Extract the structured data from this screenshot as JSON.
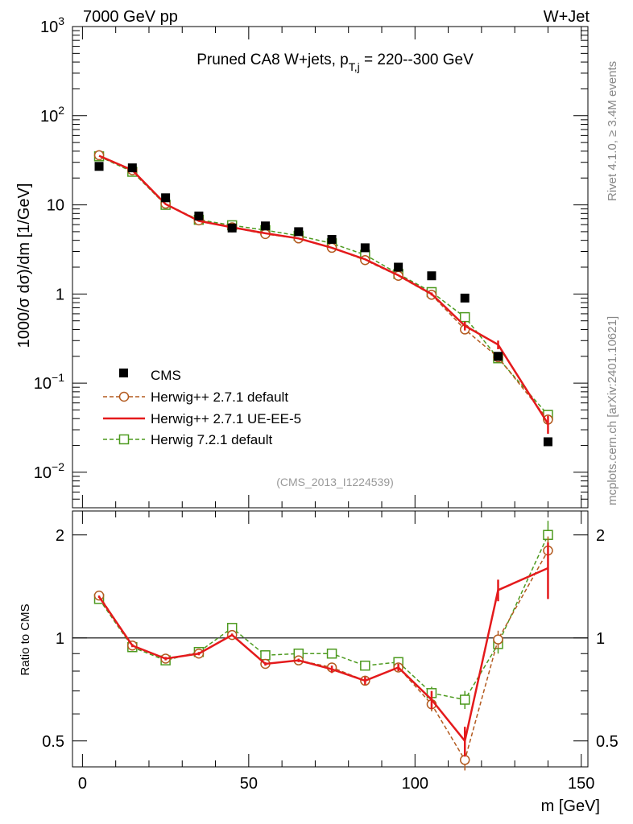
{
  "header": {
    "left": "7000 GeV pp",
    "right": "W+Jet"
  },
  "side_labels": {
    "rivet": "Rivet 4.1.0, ≥ 3.4M events",
    "mcplots": "mcplots.cern.ch [arXiv:2401.10621]"
  },
  "analysis_id": "(CMS_2013_I1224539)",
  "colors": {
    "cms": "#000000",
    "herwigpp_default": "#b35a1f",
    "herwigpp_ueee5": "#e41a1c",
    "herwig7": "#4d9a1f"
  },
  "chart_data": [
    {
      "type": "scatter",
      "panel": "main",
      "title": {
        "pre": "Pruned CA8 W+jets, p",
        "sub": "T,j",
        "post": " = 220--300 GeV"
      },
      "ylabel": "1000/σ  dσ)/dm [1/GeV]",
      "yscale": "log",
      "ylim": [
        0.004,
        1000
      ],
      "y_tick_labels": [
        {
          "value": 0.01,
          "base": "10",
          "exp": "−2"
        },
        {
          "value": 0.1,
          "base": "10",
          "exp": "−1"
        },
        {
          "value": 1,
          "base": "1",
          "exp": ""
        },
        {
          "value": 10,
          "base": "10",
          "exp": ""
        },
        {
          "value": 100,
          "base": "10",
          "exp": "2"
        },
        {
          "value": 1000,
          "base": "10",
          "exp": "3"
        }
      ],
      "xlim": [
        -3,
        152
      ],
      "legend_position": "bottom-left",
      "series": [
        {
          "key": "cms",
          "name": "CMS",
          "style": "filled-square",
          "x": [
            5,
            15,
            25,
            35,
            45,
            55,
            65,
            75,
            85,
            95,
            105,
            115,
            125,
            140
          ],
          "y": [
            27,
            26,
            12,
            7.5,
            5.5,
            5.8,
            5,
            4.1,
            3.3,
            2.0,
            1.6,
            0.9,
            0.2,
            0.022
          ]
        },
        {
          "key": "herwigpp_default",
          "name": "Herwig++ 2.7.1 default",
          "style": "open-circle-dashed",
          "x": [
            5,
            15,
            25,
            35,
            45,
            55,
            65,
            75,
            85,
            95,
            105,
            115,
            125,
            140
          ],
          "y": [
            36,
            24.5,
            10.3,
            6.7,
            5.6,
            4.7,
            4.2,
            3.3,
            2.4,
            1.6,
            0.98,
            0.4,
            0.195,
            0.039
          ],
          "err": [
            0,
            0,
            0,
            0,
            0,
            0,
            0,
            0,
            0,
            0,
            0,
            0.02,
            0.01,
            0.003
          ]
        },
        {
          "key": "herwigpp_ueee5",
          "name": "Herwig++ 2.7.1 UE-EE-5",
          "style": "solid-line",
          "x": [
            5,
            15,
            25,
            35,
            45,
            55,
            65,
            75,
            85,
            95,
            105,
            115,
            125,
            140
          ],
          "y": [
            35.5,
            24.5,
            10.2,
            6.6,
            5.6,
            4.8,
            4.2,
            3.3,
            2.45,
            1.62,
            1.0,
            0.44,
            0.27,
            0.035
          ],
          "err": [
            0,
            0,
            0,
            0,
            0,
            0,
            0,
            0,
            0,
            0,
            0.04,
            0.05,
            0.03,
            0.008
          ]
        },
        {
          "key": "herwig7",
          "name": "Herwig 7.2.1 default",
          "style": "open-square-dashed",
          "x": [
            5,
            15,
            25,
            35,
            45,
            55,
            65,
            75,
            85,
            95,
            105,
            115,
            125,
            140
          ],
          "y": [
            35,
            23.5,
            10.0,
            6.8,
            5.9,
            5.2,
            4.5,
            3.7,
            2.75,
            1.68,
            1.05,
            0.55,
            0.19,
            0.044
          ],
          "err": [
            0,
            0,
            0,
            0,
            0,
            0,
            0,
            0,
            0,
            0,
            0,
            0.04,
            0.015,
            0.004
          ]
        }
      ]
    },
    {
      "type": "line",
      "panel": "ratio",
      "ylabel": "Ratio to CMS",
      "xlabel": "m [GeV]",
      "yscale": "log",
      "ylim": [
        0.42,
        2.35
      ],
      "reference_line": 1,
      "y_ticks": [
        0.5,
        1,
        2
      ],
      "y_tick_labels": [
        "0.5",
        "1",
        "2"
      ],
      "xlim": [
        -3,
        152
      ],
      "x_ticks": [
        0,
        50,
        100,
        150
      ],
      "x_tick_labels": [
        "0",
        "50",
        "100",
        "150"
      ],
      "series": [
        {
          "key": "herwig7",
          "x": [
            5,
            15,
            25,
            35,
            45,
            55,
            65,
            75,
            85,
            95,
            105,
            115,
            125,
            140
          ],
          "y": [
            1.3,
            0.94,
            0.86,
            0.91,
            1.07,
            0.89,
            0.9,
            0.9,
            0.83,
            0.85,
            0.69,
            0.66,
            0.96,
            2.0
          ],
          "err": [
            0.01,
            0.01,
            0.01,
            0.01,
            0.01,
            0.01,
            0.01,
            0.01,
            0.01,
            0.02,
            0.03,
            0.04,
            0.06,
            0.2
          ]
        },
        {
          "key": "herwigpp_default",
          "x": [
            5,
            15,
            25,
            35,
            45,
            55,
            65,
            75,
            85,
            95,
            105,
            115,
            125,
            140
          ],
          "y": [
            1.33,
            0.95,
            0.87,
            0.9,
            1.02,
            0.84,
            0.86,
            0.82,
            0.75,
            0.82,
            0.64,
            0.44,
            0.99,
            1.8
          ],
          "err": [
            0.01,
            0.01,
            0.01,
            0.01,
            0.01,
            0.01,
            0.01,
            0.01,
            0.02,
            0.02,
            0.03,
            0.03,
            0.06,
            0.18
          ]
        },
        {
          "key": "herwigpp_ueee5",
          "x": [
            5,
            15,
            25,
            35,
            45,
            55,
            65,
            75,
            85,
            95,
            105,
            115,
            125,
            140
          ],
          "y": [
            1.32,
            0.95,
            0.87,
            0.9,
            1.02,
            0.84,
            0.86,
            0.81,
            0.75,
            0.82,
            0.66,
            0.5,
            1.38,
            1.6
          ],
          "err": [
            0.01,
            0.01,
            0.01,
            0.01,
            0.01,
            0.01,
            0.01,
            0.02,
            0.02,
            0.02,
            0.04,
            0.05,
            0.1,
            0.3
          ]
        }
      ]
    }
  ]
}
